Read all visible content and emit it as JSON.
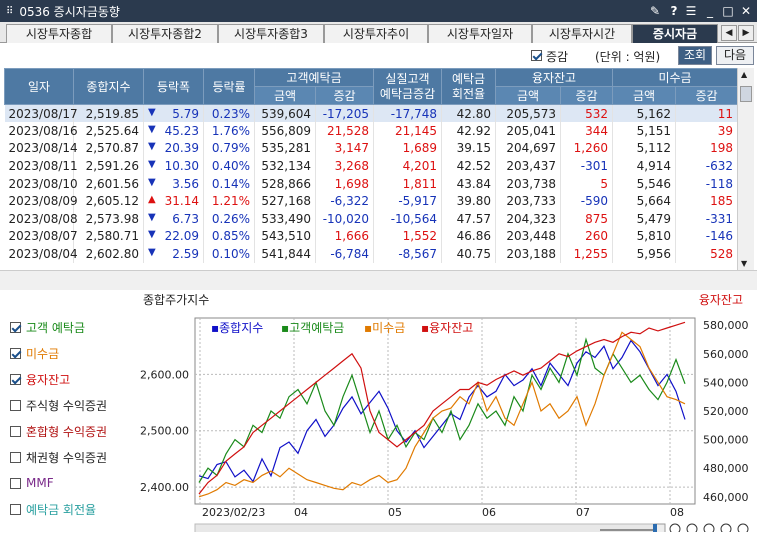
{
  "window": {
    "title": "0536 증시자금동향",
    "icons": [
      "grip-icon",
      "pin-icon",
      "help-icon",
      "menu-icon",
      "minimize-icon",
      "maximize-icon",
      "close-icon"
    ]
  },
  "tabs": [
    "시장투자종합",
    "시장투자종합2",
    "시장투자종합3",
    "시장투자추이",
    "시장투자일자",
    "시장투자시간",
    "증시자금"
  ],
  "options": {
    "checkbox_label": "증감",
    "unit": "(단위 : 억원)",
    "query_button": "조회",
    "next_button": "다음"
  },
  "table": {
    "headers": {
      "date": "일자",
      "index": "종합지수",
      "change": "등락폭",
      "rate": "등락률",
      "deposit": "고객예탁금",
      "real_deposit": "실질고객\n예탁금증감",
      "turnover": "예탁금\n회전율",
      "credit": "융자잔고",
      "unpaid": "미수금",
      "amount": "금액",
      "diff": "증감"
    },
    "rows": [
      [
        "2023/08/17",
        "2,519.85",
        "dn",
        "5.79",
        "0.23%",
        "539,604",
        "-17,205",
        "-17,748",
        "42.80",
        "205,573",
        "532",
        "5,162",
        "11"
      ],
      [
        "2023/08/16",
        "2,525.64",
        "dn",
        "45.23",
        "1.76%",
        "556,809",
        "21,528",
        "21,145",
        "42.92",
        "205,041",
        "344",
        "5,151",
        "39"
      ],
      [
        "2023/08/14",
        "2,570.87",
        "dn",
        "20.39",
        "0.79%",
        "535,281",
        "3,147",
        "1,689",
        "39.15",
        "204,697",
        "1,260",
        "5,112",
        "198"
      ],
      [
        "2023/08/11",
        "2,591.26",
        "dn",
        "10.30",
        "0.40%",
        "532,134",
        "3,268",
        "4,201",
        "42.52",
        "203,437",
        "-301",
        "4,914",
        "-632"
      ],
      [
        "2023/08/10",
        "2,601.56",
        "dn",
        "3.56",
        "0.14%",
        "528,866",
        "1,698",
        "1,811",
        "43.84",
        "203,738",
        "5",
        "5,546",
        "-118"
      ],
      [
        "2023/08/09",
        "2,605.12",
        "up",
        "31.14",
        "1.21%",
        "527,168",
        "-6,322",
        "-5,917",
        "39.80",
        "203,733",
        "-590",
        "5,664",
        "185"
      ],
      [
        "2023/08/08",
        "2,573.98",
        "dn",
        "6.73",
        "0.26%",
        "533,490",
        "-10,020",
        "-10,564",
        "47.57",
        "204,323",
        "875",
        "5,479",
        "-331"
      ],
      [
        "2023/08/07",
        "2,580.71",
        "dn",
        "22.09",
        "0.85%",
        "543,510",
        "1,666",
        "1,552",
        "46.86",
        "203,448",
        "260",
        "5,810",
        "-146"
      ],
      [
        "2023/08/04",
        "2,602.80",
        "dn",
        "2.59",
        "0.10%",
        "541,844",
        "-6,784",
        "-8,567",
        "40.75",
        "203,188",
        "1,255",
        "5,956",
        "528"
      ]
    ]
  },
  "legend": [
    {
      "label": "고객 예탁금",
      "checked": true,
      "color": "#1a8a1a"
    },
    {
      "label": "미수금",
      "checked": true,
      "color": "#e07a00"
    },
    {
      "label": "융자잔고",
      "checked": true,
      "color": "#d01010"
    },
    {
      "label": "주식형 수익증권",
      "checked": false,
      "color": "#222222"
    },
    {
      "label": "혼합형 수익증권",
      "checked": false,
      "color": "#b01010"
    },
    {
      "label": "채권형 수익증권",
      "checked": false,
      "color": "#222222"
    },
    {
      "label": "MMF",
      "checked": false,
      "color": "#7a2a8a"
    },
    {
      "label": "예탁금 회전율",
      "checked": false,
      "color": "#2aa0a0"
    }
  ],
  "chart_data": {
    "type": "line",
    "title": "",
    "left_axis_title": "종합주가지수",
    "right_axis_title": "융자잔고",
    "legend_entries": [
      "종합지수",
      "고객예탁금",
      "미수금",
      "융자잔고"
    ],
    "series_colors": [
      "#1010c8",
      "#1a8a1a",
      "#e07a00",
      "#d01010"
    ],
    "x_ticks": [
      "2023/02/23",
      "04",
      "05",
      "06",
      "07",
      "08"
    ],
    "left_ticks": [
      "2,600.00",
      "2,500.00",
      "2,400.00"
    ],
    "right_ticks": [
      "580,000",
      "560,000",
      "540,000",
      "520,000",
      "500,000",
      "480,000",
      "460,000"
    ],
    "ylim_left": [
      2370,
      2700
    ],
    "ylim_right": [
      455000,
      585000
    ],
    "series": [
      {
        "name": "종합지수",
        "axis": "left",
        "values": [
          2420,
          2415,
          2440,
          2445,
          2418,
          2430,
          2410,
          2450,
          2420,
          2470,
          2480,
          2460,
          2500,
          2520,
          2490,
          2510,
          2540,
          2560,
          2530,
          2550,
          2570,
          2540,
          2500,
          2480,
          2500,
          2470,
          2490,
          2510,
          2530,
          2520,
          2560,
          2580,
          2560,
          2570,
          2600,
          2580,
          2590,
          2610,
          2580,
          2620,
          2600,
          2580,
          2620,
          2640,
          2630,
          2650,
          2610,
          2630,
          2660,
          2640,
          2610,
          2580,
          2600,
          2570,
          2520
        ]
      },
      {
        "name": "고객예탁금",
        "axis": "right",
        "values": [
          470000,
          480000,
          475000,
          490000,
          500000,
          495000,
          510000,
          505000,
          520000,
          515000,
          530000,
          535000,
          525000,
          540000,
          520000,
          510000,
          530000,
          545000,
          525000,
          505000,
          520000,
          500000,
          510000,
          495000,
          505000,
          500000,
          515000,
          505000,
          520000,
          500000,
          510000,
          525000,
          515000,
          520000,
          510000,
          530000,
          520000,
          545000,
          535000,
          550000,
          540000,
          560000,
          545000,
          570000,
          550000,
          545000,
          560000,
          550000,
          540000,
          545000,
          535000,
          528000,
          540000,
          556000,
          539000
        ]
      },
      {
        "name": "미수금",
        "axis": "right",
        "values": [
          460000,
          462000,
          465000,
          470000,
          468000,
          472000,
          470000,
          475000,
          478000,
          474000,
          480000,
          476000,
          472000,
          470000,
          468000,
          466000,
          465000,
          470000,
          468000,
          472000,
          475000,
          470000,
          472000,
          480000,
          495000,
          505000,
          515000,
          520000,
          522000,
          530000,
          525000,
          540000,
          520000,
          530000,
          515000,
          510000,
          525000,
          540000,
          520000,
          525000,
          515000,
          520000,
          530000,
          510000,
          525000,
          545000,
          560000,
          575000,
          570000,
          565000,
          550000,
          540000,
          530000,
          528000,
          525000
        ]
      },
      {
        "name": "융자잔고",
        "axis": "right",
        "values": [
          462000,
          470000,
          475000,
          485000,
          490000,
          495000,
          505000,
          510000,
          515000,
          520000,
          525000,
          530000,
          535000,
          540000,
          545000,
          550000,
          555000,
          560000,
          550000,
          520000,
          505000,
          500000,
          495000,
          500000,
          505000,
          510000,
          520000,
          525000,
          530000,
          535000,
          535000,
          540000,
          538000,
          542000,
          545000,
          548000,
          545000,
          548000,
          550000,
          555000,
          560000,
          558000,
          562000,
          565000,
          568000,
          570000,
          568000,
          572000,
          575000,
          574000,
          578000,
          576000,
          578000,
          580000,
          582000
        ]
      }
    ]
  }
}
